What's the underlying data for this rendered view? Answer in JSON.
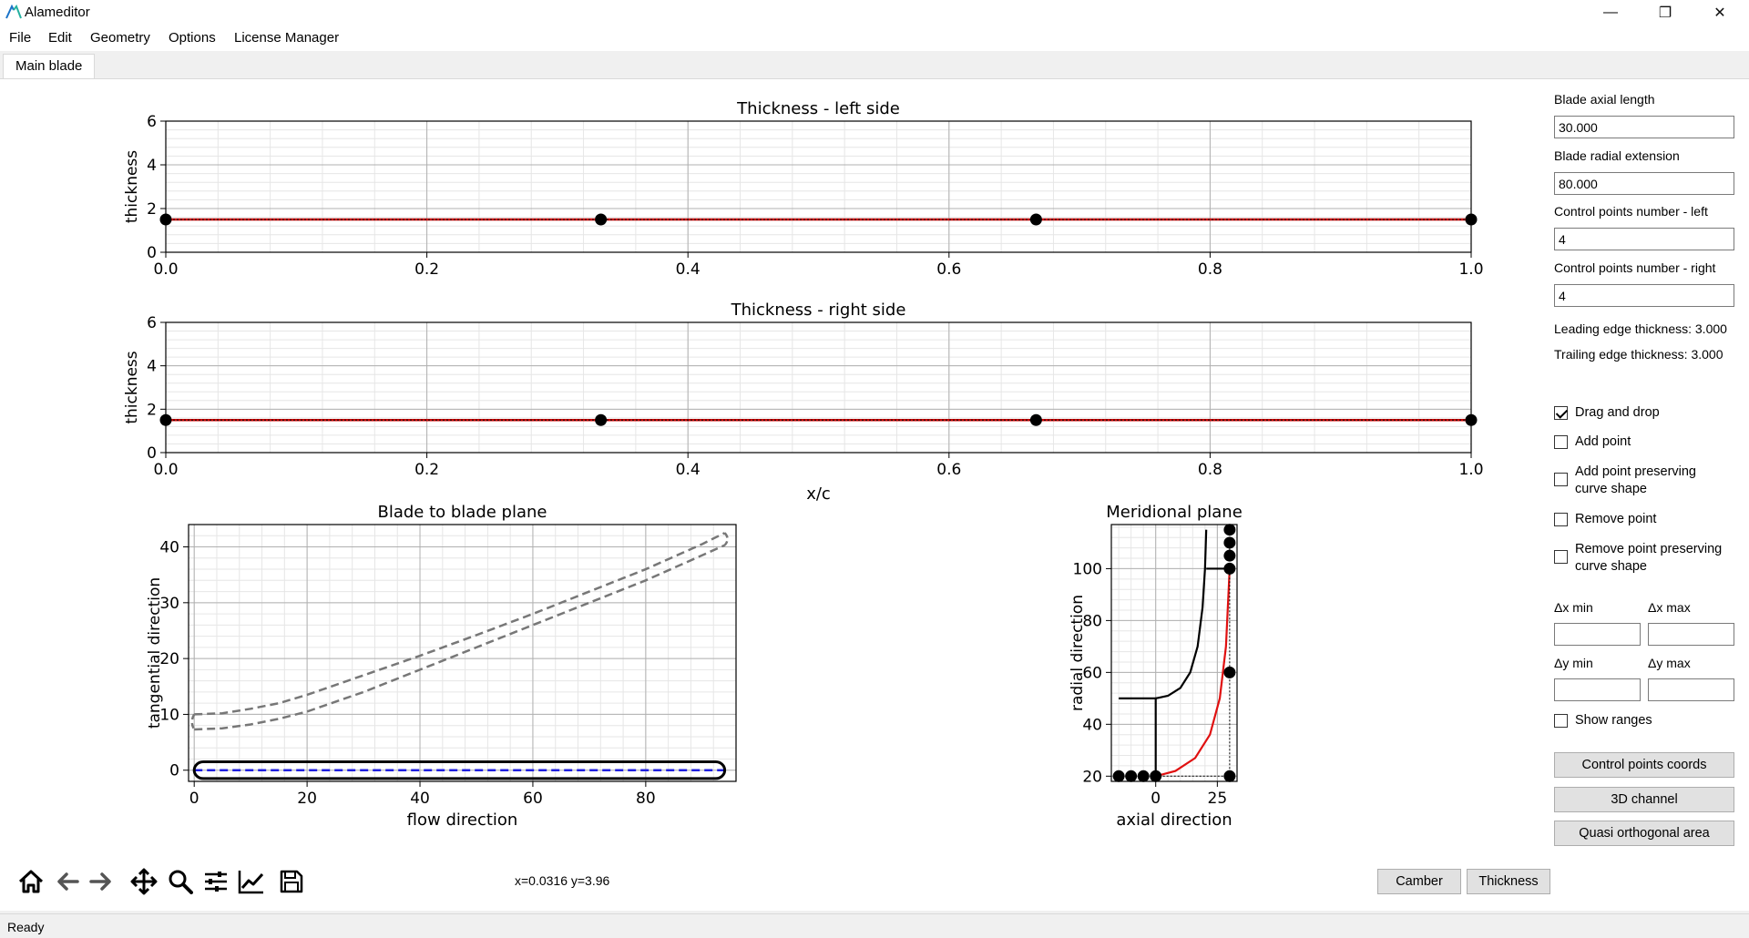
{
  "window": {
    "title": "Alameditor",
    "minimize_glyph": "—",
    "restore_glyph": "❐",
    "close_glyph": "✕"
  },
  "menu": [
    "File",
    "Edit",
    "Geometry",
    "Options",
    "License Manager"
  ],
  "tabs": [
    {
      "label": "Main blade",
      "active": true
    }
  ],
  "chart_data": [
    {
      "type": "line",
      "title": "Thickness - left side",
      "xlabel": "",
      "ylabel": "thickness",
      "xlim": [
        0,
        1
      ],
      "ylim": [
        0,
        6
      ],
      "xticks": [
        "0.0",
        "0.2",
        "0.4",
        "0.6",
        "0.8",
        "1.0"
      ],
      "yticks": [
        "0",
        "2",
        "4",
        "6"
      ],
      "grid": true,
      "curve": {
        "x": [
          0,
          1
        ],
        "y": [
          1.5,
          1.5
        ],
        "color": "#cc0000"
      },
      "control_points": {
        "x": [
          0,
          0.3333,
          0.6667,
          1.0
        ],
        "y": [
          1.5,
          1.5,
          1.5,
          1.5
        ]
      }
    },
    {
      "type": "line",
      "title": "Thickness - right side",
      "xlabel": "x/c",
      "ylabel": "thickness",
      "xlim": [
        0,
        1
      ],
      "ylim": [
        0,
        6
      ],
      "xticks": [
        "0.0",
        "0.2",
        "0.4",
        "0.6",
        "0.8",
        "1.0"
      ],
      "yticks": [
        "0",
        "2",
        "4",
        "6"
      ],
      "grid": true,
      "curve": {
        "x": [
          0,
          1
        ],
        "y": [
          1.5,
          1.5
        ],
        "color": "#cc0000"
      },
      "control_points": {
        "x": [
          0,
          0.3333,
          0.6667,
          1.0
        ],
        "y": [
          1.5,
          1.5,
          1.5,
          1.5
        ]
      }
    },
    {
      "type": "line",
      "title": "Blade to blade plane",
      "xlabel": "flow direction",
      "ylabel": "tangential direction",
      "xlim": [
        -1,
        96
      ],
      "ylim": [
        -2,
        44
      ],
      "xticks": [
        "0",
        "20",
        "40",
        "60",
        "80"
      ],
      "yticks": [
        "0",
        "10",
        "20",
        "30",
        "40"
      ],
      "grid": true,
      "series": [
        {
          "style": "dashed-gray",
          "x": [
            0,
            5,
            10,
            15,
            20,
            30,
            40,
            50,
            60,
            70,
            80,
            90,
            94
          ],
          "y": [
            10,
            10.2,
            11,
            12,
            13.5,
            17,
            20.5,
            24.2,
            28,
            32,
            36,
            40.5,
            42.5
          ]
        },
        {
          "style": "dashed-gray",
          "x": [
            0,
            5,
            10,
            15,
            20,
            30,
            40,
            50,
            60,
            70,
            80,
            90,
            94
          ],
          "y": [
            7.3,
            7.5,
            8.2,
            9.2,
            10.5,
            14,
            18,
            22,
            26,
            30,
            34,
            38.5,
            40.3
          ]
        },
        {
          "style": "dashed-blue",
          "x": [
            0,
            94
          ],
          "y": [
            0,
            0
          ]
        }
      ]
    },
    {
      "type": "line",
      "title": "Meridional plane",
      "xlabel": "axial direction",
      "ylabel": "radial direction",
      "xlim": [
        -18,
        33
      ],
      "ylim": [
        18,
        117
      ],
      "xticks": [
        "0",
        "25"
      ],
      "yticks": [
        "20",
        "40",
        "60",
        "80",
        "100"
      ],
      "grid": true,
      "series": [
        {
          "style": "black",
          "x": [
            -15,
            0,
            0
          ],
          "y": [
            50,
            50,
            20
          ]
        },
        {
          "style": "black",
          "x": [
            0,
            5,
            10,
            14,
            17,
            19,
            20,
            20.5
          ],
          "y": [
            50,
            51,
            54,
            60,
            70,
            85,
            100,
            115
          ]
        },
        {
          "style": "black",
          "x": [
            20.5,
            30
          ],
          "y": [
            100,
            100
          ]
        },
        {
          "style": "red",
          "x": [
            0,
            8,
            16,
            22,
            26,
            28.5,
            30
          ],
          "y": [
            20,
            22,
            27,
            36,
            50,
            70,
            100
          ]
        }
      ],
      "control_points": {
        "x": [
          -15,
          -10,
          -5,
          0,
          30,
          30,
          30,
          30,
          30,
          30
        ],
        "y": [
          20,
          20,
          20,
          20,
          20,
          60,
          100,
          105,
          110,
          115
        ]
      }
    }
  ],
  "sidebar": {
    "axial_length_label": "Blade axial length",
    "axial_length_value": "30.000",
    "radial_ext_label": "Blade radial extension",
    "radial_ext_value": "80.000",
    "cp_left_label": "Control points number - left",
    "cp_left_value": "4",
    "cp_right_label": "Control points number - right",
    "cp_right_value": "4",
    "le_thickness": "Leading edge thickness: 3.000",
    "te_thickness": "Trailing edge thickness: 3.000",
    "checkboxes": [
      {
        "label": "Drag and drop",
        "checked": true
      },
      {
        "label": "Add point",
        "checked": false
      },
      {
        "label": "Add point preserving curve shape",
        "checked": false
      },
      {
        "label": "Remove point",
        "checked": false
      },
      {
        "label": "Remove point preserving curve shape",
        "checked": false
      }
    ],
    "dx_min_label": "Δx min",
    "dx_max_label": "Δx max",
    "dy_min_label": "Δy min",
    "dy_max_label": "Δy max",
    "show_ranges_label": "Show ranges",
    "show_ranges_checked": false,
    "btn_cp_coords": "Control points coords",
    "btn_3d_channel": "3D channel",
    "btn_quasi": "Quasi orthogonal area"
  },
  "toolbar": {
    "icons": [
      "home-icon",
      "back-arrow-icon",
      "forward-arrow-icon",
      "pan-icon",
      "zoom-icon",
      "configure-subplots-icon",
      "edit-axes-icon",
      "save-icon"
    ],
    "coords": "x=0.0316 y=3.96"
  },
  "bottom_buttons": {
    "camber": "Camber",
    "thickness": "Thickness"
  },
  "status": "Ready"
}
